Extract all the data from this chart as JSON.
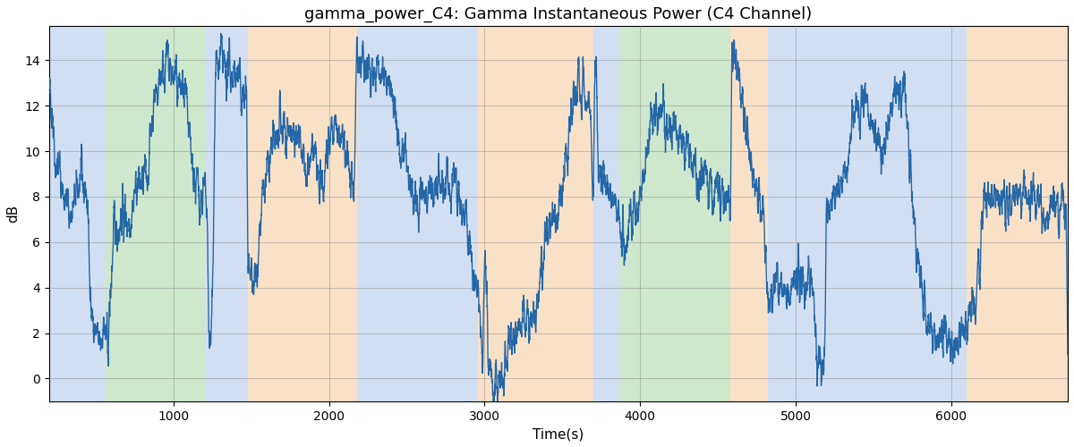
{
  "title": "gamma_power_C4: Gamma Instantaneous Power (C4 Channel)",
  "xlabel": "Time(s)",
  "ylabel": "dB",
  "xlim": [
    200,
    6750
  ],
  "ylim": [
    -1,
    15.5
  ],
  "yticks": [
    0,
    2,
    4,
    6,
    8,
    10,
    12,
    14
  ],
  "xticks": [
    1000,
    2000,
    3000,
    4000,
    5000,
    6000
  ],
  "line_color": "#2467a8",
  "line_width": 1.0,
  "bg_color": "#ffffff",
  "title_fontsize": 13,
  "label_fontsize": 11,
  "bands": [
    {
      "xmin": 200,
      "xmax": 560,
      "color": "#aec6e8",
      "alpha": 0.55
    },
    {
      "xmin": 560,
      "xmax": 1200,
      "color": "#a8d5a2",
      "alpha": 0.55
    },
    {
      "xmin": 1200,
      "xmax": 1480,
      "color": "#aec6e8",
      "alpha": 0.55
    },
    {
      "xmin": 1480,
      "xmax": 2180,
      "color": "#f5c99a",
      "alpha": 0.55
    },
    {
      "xmin": 2180,
      "xmax": 2960,
      "color": "#aec6e8",
      "alpha": 0.55
    },
    {
      "xmin": 2960,
      "xmax": 3700,
      "color": "#f5c99a",
      "alpha": 0.55
    },
    {
      "xmin": 3700,
      "xmax": 3870,
      "color": "#aec6e8",
      "alpha": 0.55
    },
    {
      "xmin": 3870,
      "xmax": 4580,
      "color": "#a8d5a2",
      "alpha": 0.55
    },
    {
      "xmin": 4580,
      "xmax": 4820,
      "color": "#f5c99a",
      "alpha": 0.55
    },
    {
      "xmin": 4820,
      "xmax": 5950,
      "color": "#aec6e8",
      "alpha": 0.55
    },
    {
      "xmin": 5950,
      "xmax": 6100,
      "color": "#aec6e8",
      "alpha": 0.55
    },
    {
      "xmin": 6100,
      "xmax": 6750,
      "color": "#f5c99a",
      "alpha": 0.55
    }
  ],
  "control_points": [
    [
      200,
      12.4
    ],
    [
      220,
      12.3
    ],
    [
      240,
      9.6
    ],
    [
      260,
      9.5
    ],
    [
      280,
      8.5
    ],
    [
      300,
      8.0
    ],
    [
      320,
      7.5
    ],
    [
      340,
      7.2
    ],
    [
      360,
      7.5
    ],
    [
      380,
      8.2
    ],
    [
      400,
      8.8
    ],
    [
      420,
      8.5
    ],
    [
      440,
      8.2
    ],
    [
      460,
      5.5
    ],
    [
      470,
      3.0
    ],
    [
      480,
      2.5
    ],
    [
      490,
      2.0
    ],
    [
      500,
      1.8
    ],
    [
      510,
      1.6
    ],
    [
      520,
      1.5
    ],
    [
      530,
      1.5
    ],
    [
      540,
      2.0
    ],
    [
      550,
      2.5
    ],
    [
      560,
      1.8
    ],
    [
      570,
      1.5
    ],
    [
      580,
      1.5
    ],
    [
      590,
      3.0
    ],
    [
      600,
      4.5
    ],
    [
      620,
      6.5
    ],
    [
      640,
      6.8
    ],
    [
      660,
      7.0
    ],
    [
      680,
      7.2
    ],
    [
      700,
      7.0
    ],
    [
      720,
      7.2
    ],
    [
      740,
      7.8
    ],
    [
      760,
      8.5
    ],
    [
      780,
      8.6
    ],
    [
      800,
      8.5
    ],
    [
      820,
      8.8
    ],
    [
      840,
      9.5
    ],
    [
      860,
      11.5
    ],
    [
      880,
      12.5
    ],
    [
      900,
      12.8
    ],
    [
      920,
      13.5
    ],
    [
      940,
      13.8
    ],
    [
      960,
      13.8
    ],
    [
      980,
      13.5
    ],
    [
      1000,
      13.2
    ],
    [
      1020,
      13.0
    ],
    [
      1040,
      12.8
    ],
    [
      1060,
      12.5
    ],
    [
      1080,
      11.8
    ],
    [
      1100,
      10.5
    ],
    [
      1120,
      9.5
    ],
    [
      1140,
      8.5
    ],
    [
      1160,
      8.2
    ],
    [
      1180,
      8.0
    ],
    [
      1200,
      8.0
    ],
    [
      1210,
      7.5
    ],
    [
      1220,
      5.5
    ],
    [
      1230,
      1.2
    ],
    [
      1240,
      1.1
    ],
    [
      1250,
      4.0
    ],
    [
      1260,
      8.5
    ],
    [
      1270,
      13.5
    ],
    [
      1280,
      13.8
    ],
    [
      1290,
      13.5
    ],
    [
      1300,
      14.2
    ],
    [
      1310,
      13.8
    ],
    [
      1320,
      13.5
    ],
    [
      1330,
      13.5
    ],
    [
      1340,
      13.5
    ],
    [
      1350,
      13.5
    ],
    [
      1360,
      13.5
    ],
    [
      1370,
      13.5
    ],
    [
      1380,
      13.5
    ],
    [
      1390,
      13.5
    ],
    [
      1400,
      13.5
    ],
    [
      1410,
      13.2
    ],
    [
      1420,
      13.0
    ],
    [
      1430,
      12.8
    ],
    [
      1440,
      12.5
    ],
    [
      1450,
      12.5
    ],
    [
      1460,
      12.5
    ],
    [
      1470,
      12.0
    ],
    [
      1480,
      4.8
    ],
    [
      1490,
      4.5
    ],
    [
      1500,
      4.5
    ],
    [
      1510,
      4.3
    ],
    [
      1520,
      4.3
    ],
    [
      1530,
      4.5
    ],
    [
      1550,
      6.5
    ],
    [
      1580,
      8.0
    ],
    [
      1600,
      8.8
    ],
    [
      1620,
      9.5
    ],
    [
      1640,
      10.0
    ],
    [
      1660,
      10.5
    ],
    [
      1680,
      10.8
    ],
    [
      1700,
      10.8
    ],
    [
      1720,
      10.8
    ],
    [
      1740,
      11.0
    ],
    [
      1760,
      11.0
    ],
    [
      1780,
      11.0
    ],
    [
      1800,
      10.5
    ],
    [
      1820,
      10.0
    ],
    [
      1840,
      9.0
    ],
    [
      1860,
      8.8
    ],
    [
      1880,
      9.5
    ],
    [
      1900,
      10.0
    ],
    [
      1920,
      9.5
    ],
    [
      1940,
      8.0
    ],
    [
      1960,
      8.5
    ],
    [
      1980,
      10.0
    ],
    [
      2000,
      10.8
    ],
    [
      2020,
      11.0
    ],
    [
      2040,
      11.0
    ],
    [
      2060,
      10.8
    ],
    [
      2080,
      10.5
    ],
    [
      2100,
      10.5
    ],
    [
      2120,
      9.5
    ],
    [
      2140,
      8.5
    ],
    [
      2160,
      8.0
    ],
    [
      2180,
      14.5
    ],
    [
      2190,
      14.5
    ],
    [
      2200,
      14.5
    ],
    [
      2210,
      14.0
    ],
    [
      2220,
      14.0
    ],
    [
      2230,
      13.8
    ],
    [
      2240,
      13.8
    ],
    [
      2250,
      13.5
    ],
    [
      2260,
      13.5
    ],
    [
      2280,
      13.5
    ],
    [
      2300,
      13.5
    ],
    [
      2320,
      13.5
    ],
    [
      2340,
      13.5
    ],
    [
      2360,
      13.2
    ],
    [
      2380,
      13.0
    ],
    [
      2400,
      12.5
    ],
    [
      2420,
      12.0
    ],
    [
      2440,
      11.0
    ],
    [
      2460,
      10.0
    ],
    [
      2480,
      9.5
    ],
    [
      2500,
      9.0
    ],
    [
      2520,
      8.5
    ],
    [
      2540,
      8.2
    ],
    [
      2560,
      8.0
    ],
    [
      2580,
      8.0
    ],
    [
      2600,
      8.0
    ],
    [
      2620,
      8.0
    ],
    [
      2640,
      8.0
    ],
    [
      2660,
      8.0
    ],
    [
      2680,
      8.2
    ],
    [
      2700,
      8.5
    ],
    [
      2720,
      8.5
    ],
    [
      2740,
      8.5
    ],
    [
      2760,
      8.5
    ],
    [
      2780,
      8.5
    ],
    [
      2800,
      8.5
    ],
    [
      2820,
      8.2
    ],
    [
      2840,
      8.0
    ],
    [
      2860,
      7.5
    ],
    [
      2880,
      6.5
    ],
    [
      2900,
      5.5
    ],
    [
      2920,
      4.5
    ],
    [
      2940,
      4.2
    ],
    [
      2960,
      4.5
    ],
    [
      2970,
      3.5
    ],
    [
      2980,
      1.5
    ],
    [
      2990,
      0.5
    ],
    [
      3000,
      5.5
    ],
    [
      3010,
      4.2
    ],
    [
      3020,
      1.5
    ],
    [
      3030,
      0.8
    ],
    [
      3040,
      0.5
    ],
    [
      3050,
      0.3
    ],
    [
      3060,
      0.2
    ],
    [
      3070,
      0.0
    ],
    [
      3080,
      -0.3
    ],
    [
      3090,
      -0.5
    ],
    [
      3100,
      -0.5
    ],
    [
      3110,
      -0.3
    ],
    [
      3120,
      0.0
    ],
    [
      3130,
      0.5
    ],
    [
      3140,
      1.0
    ],
    [
      3150,
      1.5
    ],
    [
      3160,
      1.5
    ],
    [
      3180,
      2.0
    ],
    [
      3200,
      2.5
    ],
    [
      3220,
      2.5
    ],
    [
      3240,
      2.5
    ],
    [
      3260,
      2.5
    ],
    [
      3280,
      2.5
    ],
    [
      3300,
      2.5
    ],
    [
      3320,
      3.0
    ],
    [
      3340,
      4.0
    ],
    [
      3360,
      4.5
    ],
    [
      3380,
      5.0
    ],
    [
      3400,
      6.5
    ],
    [
      3420,
      6.5
    ],
    [
      3440,
      6.8
    ],
    [
      3460,
      7.0
    ],
    [
      3480,
      7.5
    ],
    [
      3500,
      8.0
    ],
    [
      3520,
      9.5
    ],
    [
      3540,
      11.0
    ],
    [
      3560,
      11.5
    ],
    [
      3570,
      12.0
    ],
    [
      3580,
      12.2
    ],
    [
      3590,
      12.5
    ],
    [
      3600,
      13.0
    ],
    [
      3610,
      12.5
    ],
    [
      3620,
      12.2
    ],
    [
      3630,
      13.2
    ],
    [
      3640,
      13.0
    ],
    [
      3650,
      12.5
    ],
    [
      3660,
      12.5
    ],
    [
      3670,
      12.0
    ],
    [
      3680,
      12.0
    ],
    [
      3690,
      9.5
    ],
    [
      3700,
      8.5
    ],
    [
      3710,
      13.0
    ],
    [
      3720,
      13.2
    ],
    [
      3730,
      9.5
    ],
    [
      3740,
      8.5
    ],
    [
      3750,
      9.0
    ],
    [
      3760,
      8.5
    ],
    [
      3770,
      8.5
    ],
    [
      3780,
      8.5
    ],
    [
      3790,
      8.5
    ],
    [
      3800,
      8.5
    ],
    [
      3820,
      8.0
    ],
    [
      3840,
      7.5
    ],
    [
      3860,
      6.5
    ],
    [
      3870,
      6.2
    ],
    [
      3880,
      6.0
    ],
    [
      3900,
      6.0
    ],
    [
      3920,
      6.5
    ],
    [
      3940,
      7.5
    ],
    [
      3960,
      8.0
    ],
    [
      3980,
      8.0
    ],
    [
      4000,
      8.0
    ],
    [
      4020,
      9.0
    ],
    [
      4040,
      10.0
    ],
    [
      4060,
      11.0
    ],
    [
      4080,
      11.5
    ],
    [
      4100,
      11.5
    ],
    [
      4120,
      11.5
    ],
    [
      4140,
      11.5
    ],
    [
      4160,
      11.5
    ],
    [
      4180,
      11.5
    ],
    [
      4200,
      11.0
    ],
    [
      4220,
      11.0
    ],
    [
      4240,
      11.0
    ],
    [
      4260,
      10.5
    ],
    [
      4280,
      10.0
    ],
    [
      4300,
      10.0
    ],
    [
      4320,
      10.0
    ],
    [
      4340,
      9.5
    ],
    [
      4360,
      9.5
    ],
    [
      4380,
      9.0
    ],
    [
      4400,
      9.0
    ],
    [
      4420,
      9.0
    ],
    [
      4440,
      8.8
    ],
    [
      4460,
      8.5
    ],
    [
      4480,
      8.5
    ],
    [
      4500,
      8.5
    ],
    [
      4520,
      8.2
    ],
    [
      4540,
      8.0
    ],
    [
      4560,
      8.0
    ],
    [
      4580,
      7.5
    ],
    [
      4590,
      14.8
    ],
    [
      4600,
      14.8
    ],
    [
      4610,
      14.5
    ],
    [
      4620,
      13.5
    ],
    [
      4630,
      13.0
    ],
    [
      4640,
      12.5
    ],
    [
      4650,
      12.5
    ],
    [
      4660,
      12.5
    ],
    [
      4670,
      12.0
    ],
    [
      4680,
      11.0
    ],
    [
      4690,
      10.5
    ],
    [
      4700,
      10.0
    ],
    [
      4710,
      9.5
    ],
    [
      4720,
      9.0
    ],
    [
      4730,
      8.8
    ],
    [
      4740,
      8.5
    ],
    [
      4750,
      8.2
    ],
    [
      4760,
      7.8
    ],
    [
      4770,
      7.5
    ],
    [
      4780,
      7.5
    ],
    [
      4790,
      7.5
    ],
    [
      4800,
      7.5
    ],
    [
      4810,
      5.0
    ],
    [
      4820,
      3.2
    ],
    [
      4830,
      3.2
    ],
    [
      4840,
      3.5
    ],
    [
      4860,
      4.0
    ],
    [
      4880,
      4.0
    ],
    [
      4900,
      4.0
    ],
    [
      4920,
      4.0
    ],
    [
      4940,
      4.0
    ],
    [
      4960,
      4.2
    ],
    [
      4980,
      4.3
    ],
    [
      5000,
      4.5
    ],
    [
      5020,
      4.3
    ],
    [
      5040,
      4.3
    ],
    [
      5060,
      4.3
    ],
    [
      5080,
      4.0
    ],
    [
      5100,
      4.2
    ],
    [
      5120,
      3.0
    ],
    [
      5140,
      0.8
    ],
    [
      5150,
      0.5
    ],
    [
      5160,
      0.4
    ],
    [
      5170,
      0.3
    ],
    [
      5180,
      0.3
    ],
    [
      5190,
      2.5
    ],
    [
      5200,
      7.0
    ],
    [
      5210,
      7.5
    ],
    [
      5220,
      7.5
    ],
    [
      5240,
      7.8
    ],
    [
      5260,
      8.2
    ],
    [
      5280,
      8.5
    ],
    [
      5300,
      8.5
    ],
    [
      5320,
      9.0
    ],
    [
      5340,
      10.0
    ],
    [
      5360,
      11.2
    ],
    [
      5380,
      11.5
    ],
    [
      5400,
      11.5
    ],
    [
      5420,
      12.0
    ],
    [
      5440,
      12.2
    ],
    [
      5460,
      12.0
    ],
    [
      5480,
      11.5
    ],
    [
      5500,
      11.5
    ],
    [
      5520,
      11.0
    ],
    [
      5540,
      10.5
    ],
    [
      5560,
      10.0
    ],
    [
      5580,
      11.0
    ],
    [
      5600,
      11.5
    ],
    [
      5620,
      12.0
    ],
    [
      5640,
      12.5
    ],
    [
      5660,
      12.8
    ],
    [
      5680,
      12.5
    ],
    [
      5700,
      12.5
    ],
    [
      5720,
      11.0
    ],
    [
      5740,
      9.0
    ],
    [
      5760,
      7.0
    ],
    [
      5780,
      5.5
    ],
    [
      5800,
      4.5
    ],
    [
      5820,
      3.5
    ],
    [
      5840,
      2.8
    ],
    [
      5860,
      2.5
    ],
    [
      5880,
      2.2
    ],
    [
      5900,
      2.0
    ],
    [
      5920,
      2.0
    ],
    [
      5940,
      2.0
    ],
    [
      5950,
      2.0
    ],
    [
      5960,
      2.0
    ],
    [
      5970,
      2.0
    ],
    [
      5980,
      2.0
    ],
    [
      5990,
      2.0
    ],
    [
      6000,
      2.0
    ],
    [
      6020,
      2.0
    ],
    [
      6040,
      2.2
    ],
    [
      6060,
      2.5
    ],
    [
      6080,
      2.2
    ],
    [
      6100,
      2.0
    ],
    [
      6120,
      2.5
    ],
    [
      6140,
      3.0
    ],
    [
      6160,
      3.5
    ],
    [
      6180,
      5.0
    ],
    [
      6200,
      6.5
    ],
    [
      6220,
      7.5
    ],
    [
      6240,
      8.0
    ],
    [
      6260,
      8.0
    ],
    [
      6280,
      8.0
    ],
    [
      6300,
      8.0
    ],
    [
      6320,
      8.0
    ],
    [
      6340,
      7.8
    ],
    [
      6360,
      7.8
    ],
    [
      6380,
      7.8
    ],
    [
      6400,
      8.0
    ],
    [
      6420,
      8.0
    ],
    [
      6440,
      8.0
    ],
    [
      6460,
      8.0
    ],
    [
      6480,
      8.0
    ],
    [
      6500,
      8.0
    ],
    [
      6520,
      8.0
    ],
    [
      6540,
      8.0
    ],
    [
      6560,
      8.0
    ],
    [
      6580,
      8.0
    ],
    [
      6600,
      7.5
    ],
    [
      6620,
      7.5
    ],
    [
      6640,
      7.5
    ],
    [
      6660,
      7.5
    ],
    [
      6680,
      7.5
    ],
    [
      6700,
      7.5
    ],
    [
      6720,
      7.5
    ],
    [
      6740,
      7.5
    ],
    [
      6750,
      1.5
    ]
  ]
}
